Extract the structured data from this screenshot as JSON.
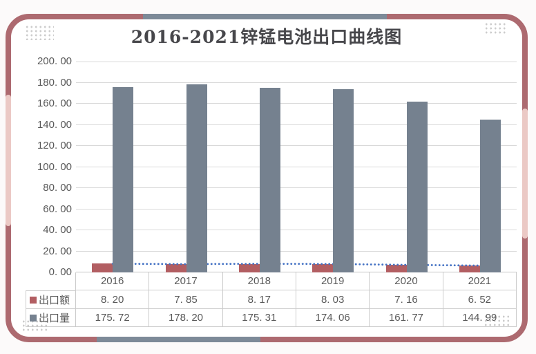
{
  "card": {
    "title": "2016-2021锌锰电池出口曲线图"
  },
  "chart_data": {
    "type": "bar",
    "title": "2016-2021锌锰电池出口曲线图",
    "categories": [
      "2016",
      "2017",
      "2018",
      "2019",
      "2020",
      "2021"
    ],
    "series": [
      {
        "name": "出口额",
        "color": "#b25e62",
        "values": [
          8.2,
          7.85,
          8.17,
          8.03,
          7.16,
          6.52
        ],
        "display": [
          "8. 20",
          "7. 85",
          "8. 17",
          "8. 03",
          "7. 16",
          "6. 52"
        ]
      },
      {
        "name": "出口量",
        "color": "#75818f",
        "values": [
          175.72,
          178.2,
          175.31,
          174.06,
          161.77,
          144.99
        ],
        "display": [
          "175. 72",
          "178. 20",
          "175. 31",
          "174. 06",
          "161. 77",
          "144. 99"
        ]
      }
    ],
    "trendline": {
      "follows_series": "出口额",
      "color": "#4472c4",
      "style": "dotted"
    },
    "ylim": [
      0,
      200
    ],
    "ytick_step": 20,
    "ytick_labels": [
      "0. 00",
      "20. 00",
      "40. 00",
      "60. 00",
      "80. 00",
      "100. 00",
      "120. 00",
      "140. 00",
      "160. 00",
      "180. 00",
      "200. 00"
    ],
    "grid": true,
    "legend_position": "table-left",
    "data_table": true
  },
  "colors": {
    "frame": "#ad6a70",
    "frame_accent_gray": "#7d8a98",
    "frame_accent_pink": "#ebc9c5",
    "grid_line": "#d9d9d9",
    "axis_text": "#595959",
    "table_border": "#cbcbcb",
    "title_text": "#47474b",
    "dot_decoration": "#cccccc",
    "background": "#fcfafa"
  }
}
